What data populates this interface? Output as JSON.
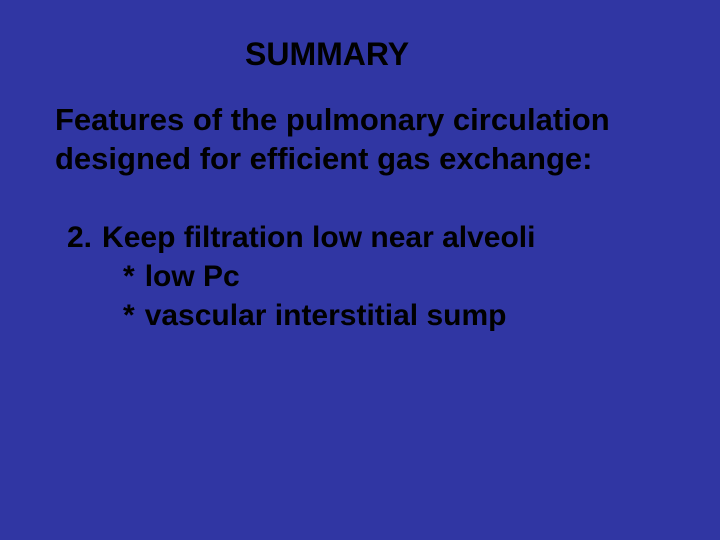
{
  "background_color": "#3036a3",
  "text_color": "#000000",
  "title": {
    "text": "SUMMARY",
    "fontsize": 32,
    "weight": "bold"
  },
  "subtitle": {
    "text": "Features of the pulmonary circulation designed for efficient gas exchange:",
    "fontsize": 31,
    "weight": "bold"
  },
  "list": {
    "number": "2.",
    "heading": "Keep filtration low near alveoli",
    "fontsize": 30,
    "weight": "bold",
    "bullets": [
      {
        "marker": "*",
        "text": "low Pc"
      },
      {
        "marker": "*",
        "text": "vascular interstitial sump"
      }
    ]
  }
}
